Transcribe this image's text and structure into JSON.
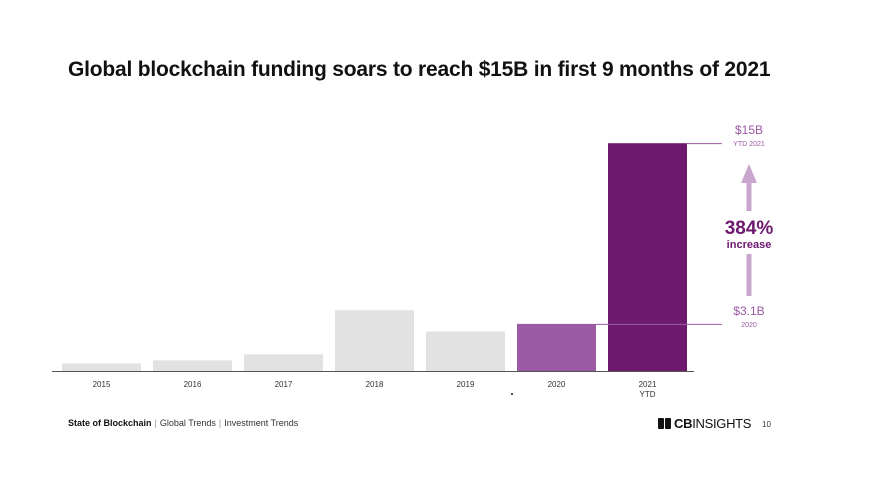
{
  "title": "Global blockchain funding soars to reach $15B in first 9 months of 2021",
  "chart_data": {
    "type": "bar",
    "categories": [
      "2015",
      "2016",
      "2017",
      "2018",
      "2019",
      "2020",
      "2021\nYTD"
    ],
    "values": [
      0.5,
      0.7,
      1.1,
      4.0,
      2.6,
      3.1,
      15.0
    ],
    "bar_colors": [
      "#e2e2e2",
      "#e2e2e2",
      "#e2e2e2",
      "#e2e2e2",
      "#e2e2e2",
      "#9b5aa3",
      "#6d1a6e"
    ],
    "ylim": [
      0,
      15.8
    ],
    "grid": false,
    "annotations": {
      "top_value": "$15B",
      "top_sub": "YTD 2021",
      "bottom_value": "$3.1B",
      "bottom_sub": "2020",
      "change_value": "384%",
      "change_label": "increase"
    }
  },
  "colors": {
    "accent_dark": "#6d1a6e",
    "accent_mid": "#9b5aa3",
    "accent_light": "#c9a6cd",
    "neutral_bar": "#e2e2e2"
  },
  "footer": {
    "source": "State of Blockchain",
    "crumb1": "Global Trends",
    "crumb2": "Investment Trends",
    "logo_bold": "CB",
    "logo_rest": "INSIGHTS",
    "page": "10"
  }
}
